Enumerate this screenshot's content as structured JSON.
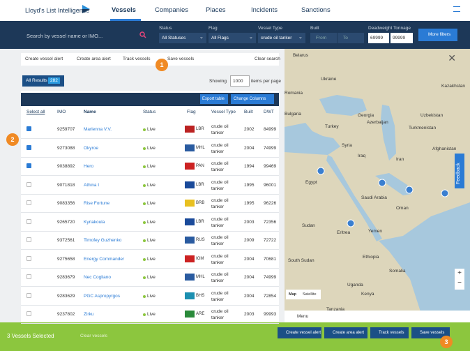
{
  "nav": {
    "logo": "Lloyd's List Intelligence",
    "items": [
      "Vessels",
      "Companies",
      "Places",
      "Incidents",
      "Sanctions"
    ]
  },
  "search": {
    "placeholder": "Search by vessel name or IMO...",
    "filters": [
      {
        "label": "Status",
        "value": "All Statuses"
      },
      {
        "label": "Flag",
        "value": "All Flags"
      },
      {
        "label": "Vessel Type",
        "value": "crude oil tanker"
      }
    ],
    "built": {
      "label": "Built",
      "from": "From",
      "to": "To"
    },
    "dwt": {
      "label": "Deadweight Tonnage",
      "min": "69999",
      "max": "99999"
    },
    "more": "More filters"
  },
  "actions": [
    "Create vessel alert",
    "Create area alert",
    "Track vessels",
    "Save vessels"
  ],
  "clear_search": "Clear search",
  "results": {
    "label": "All Results",
    "count": "282"
  },
  "showing": {
    "label": "Showing",
    "value": "1000",
    "suffix": "items per page"
  },
  "table": {
    "buttons": [
      "Export table",
      "Change Columns"
    ],
    "columns": [
      "Select all",
      "IMO",
      "Name",
      "Status",
      "Flag",
      "Vessel Type",
      "Built",
      "DWT"
    ],
    "rows": [
      [
        "9259707",
        "Marlenna V.V.",
        "Live",
        "LBR",
        "crude oil tanker",
        "2002",
        "84999"
      ],
      [
        "9273088",
        "Okyroe",
        "Live",
        "MHL",
        "crude oil tanker",
        "2004",
        "74999"
      ],
      [
        "9038892",
        "Hero",
        "Live",
        "PAN",
        "crude oil tanker",
        "1994",
        "99469"
      ],
      [
        "9071818",
        "Athina I",
        "Live",
        "LBR",
        "crude oil tanker",
        "1995",
        "96001"
      ],
      [
        "9083356",
        "Rise Fortune",
        "Live",
        "BRB",
        "crude oil tanker",
        "1995",
        "96226"
      ],
      [
        "9265720",
        "Kyriakoula",
        "Live",
        "LBR",
        "crude oil tanker",
        "2003",
        "72356"
      ],
      [
        "9372561",
        "Timofey Guzhenko",
        "Live",
        "RUS",
        "crude oil tanker",
        "2009",
        "72722"
      ],
      [
        "9275658",
        "Energy Commander",
        "Live",
        "IOM",
        "crude oil tanker",
        "2004",
        "70681"
      ],
      [
        "9283679",
        "Nec Cogliano",
        "Live",
        "MHL",
        "crude oil tanker",
        "2004",
        "74999"
      ],
      [
        "9283629",
        "PGC Aspropyrgos",
        "Live",
        "BHS",
        "crude oil tanker",
        "2004",
        "72854"
      ],
      [
        "9237802",
        "Zirku",
        "Live",
        "ARE",
        "crude oil tanker",
        "2003",
        "99993"
      ]
    ],
    "checked": [
      true,
      true,
      true,
      false,
      false,
      false,
      false,
      false,
      false,
      false,
      false
    ]
  },
  "map": {
    "labels": [
      "Belarus",
      "Ukraine",
      "Kazakhstan",
      "Romania",
      "Bulgaria",
      "Georgia",
      "Uzbekistan",
      "Turkey",
      "Turkmenistan",
      "Azerbaijan",
      "Syria",
      "Iraq",
      "Iran",
      "Afghanistan",
      "Egypt",
      "Saudi Arabia",
      "Oman",
      "Sudan",
      "Eritrea",
      "Yemen",
      "Ethiopia",
      "South Sudan",
      "Somalia",
      "Uganda",
      "Kenya",
      "Tanzania"
    ],
    "map_type": [
      "Map",
      "Satellite"
    ],
    "menu": "Menu",
    "feedback": "Feedback"
  },
  "footer": {
    "selected": "3 Vessels Selected",
    "clear": "Clear vessels",
    "buttons": [
      "Create vessel alert",
      "Create area alert",
      "Track vessels",
      "Save vessels"
    ]
  },
  "badges": [
    "1",
    "2",
    "3"
  ]
}
